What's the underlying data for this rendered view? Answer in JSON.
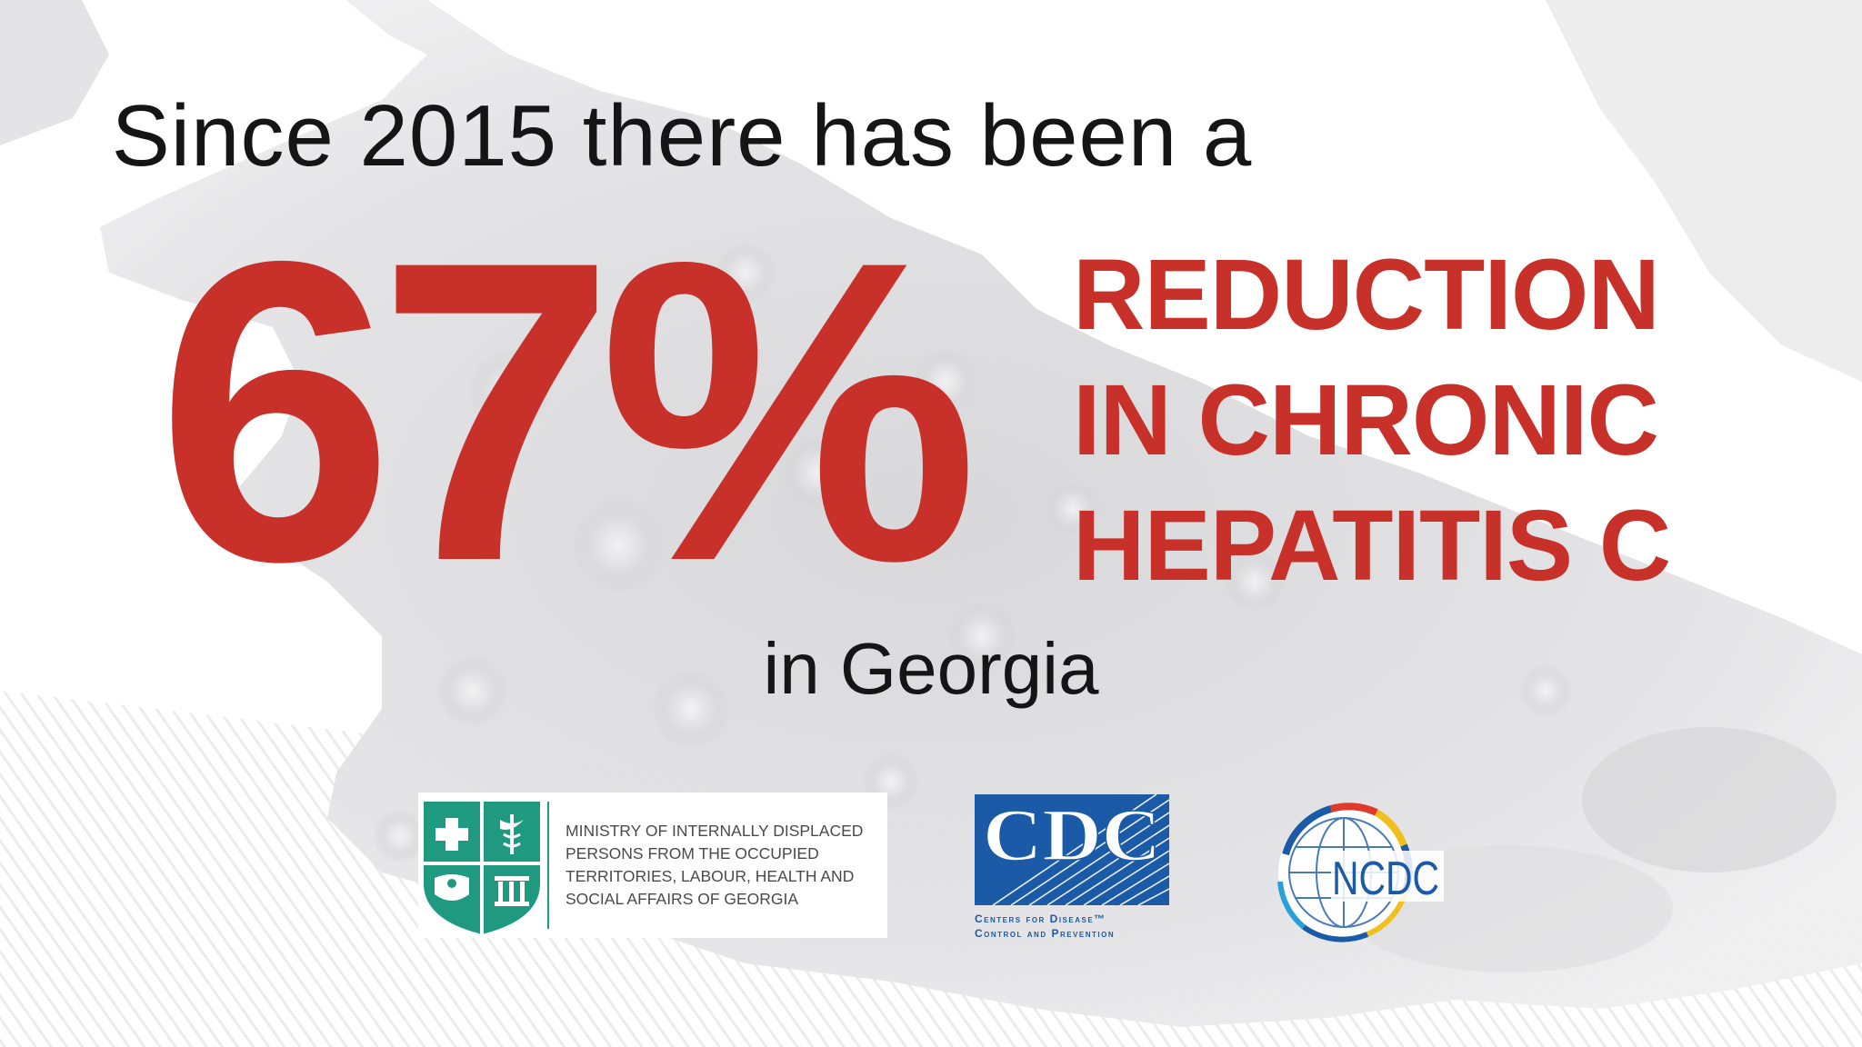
{
  "header": {
    "intro_text": "Since 2015 there has been a",
    "big_number": "67%",
    "headline_lines": [
      "REDUCTION",
      "IN CHRONIC",
      "HEPATITIS C"
    ],
    "location_text": "in Georgia"
  },
  "logos": {
    "ministry": {
      "lines": [
        "MINISTRY OF INTERNALLY DISPLACED",
        "PERSONS FROM THE OCCUPIED",
        "TERRITORIES, LABOUR, HEALTH AND",
        "SOCIAL AFFAIRS OF GEORGIA"
      ]
    },
    "cdc": {
      "mark": "CDC",
      "tagline_1": "Centers for Disease™",
      "tagline_2": "Control and Prevention"
    },
    "ncdc": {
      "mark": "NCDC"
    }
  },
  "colors": {
    "accent_red": "#c8302a",
    "text_dark": "#151515",
    "ministry_green": "#1f9a80",
    "cdc_blue": "#1b5aa7"
  }
}
